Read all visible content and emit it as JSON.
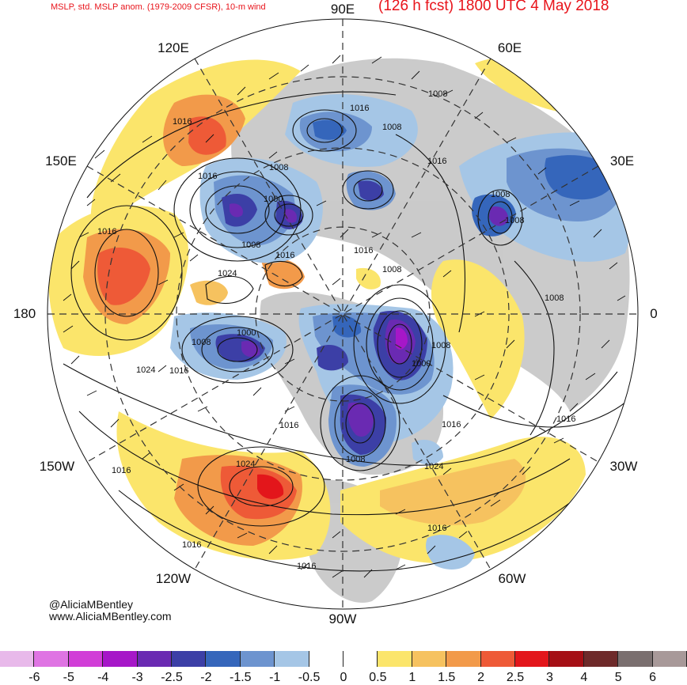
{
  "header": {
    "left_title": "MSLP, std. MSLP anom. (1979-2009 CFSR), 10-m wind",
    "right_title": "(126 h fcst) 1800 UTC 4 May 2018"
  },
  "longitude_labels": {
    "e90": "90E",
    "e60": "60E",
    "e30": "30E",
    "zero": "0",
    "w30": "30W",
    "w60": "60W",
    "w90": "90W",
    "w120": "120W",
    "w150": "150W",
    "d180": "180",
    "e150": "150E",
    "e120": "120E"
  },
  "isobar_labels": [
    "1016",
    "1016",
    "1008",
    "1000",
    "1008",
    "1016",
    "1024",
    "1016",
    "1016",
    "1008",
    "1008",
    "1016",
    "1016",
    "1008",
    "1008",
    "1008",
    "1008",
    "1000",
    "1008",
    "1016",
    "1016",
    "1016",
    "1024",
    "1024",
    "1024",
    "1016",
    "1016",
    "1016",
    "1016",
    "1016",
    "1008",
    "1000",
    "1008"
  ],
  "credits": {
    "handle": "@AliciaMBentley",
    "site": "www.AliciaMBentley.com"
  },
  "colorbar": {
    "ticks": [
      "-6",
      "-5",
      "-4",
      "-3",
      "-2.5",
      "-2",
      "-1.5",
      "-1",
      "-0.5",
      "0",
      "0.5",
      "1",
      "1.5",
      "2",
      "2.5",
      "3",
      "4",
      "5",
      "6"
    ],
    "colors": [
      "#e8b9ea",
      "#df74e3",
      "#d13ed7",
      "#a617c8",
      "#6a2ab2",
      "#3c3fa6",
      "#3566bb",
      "#6d94cf",
      "#a5c6e6",
      "#ffffff",
      "#ffffff",
      "#fbe56b",
      "#f6c25f",
      "#f29a4a",
      "#ee5a37",
      "#e3161b",
      "#a50f15",
      "#6e2a2a",
      "#7a6f6f",
      "#a89999"
    ]
  },
  "colors": {
    "negative_deep": "#3c3fa6",
    "negative_mid": "#6d94cf",
    "negative_light": "#a5c6e6",
    "positive_light": "#fbe56b",
    "positive_mid": "#f29a4a",
    "positive_strong": "#ee5a37",
    "land": "#c8c8c8",
    "title_red": "#e8141b"
  }
}
